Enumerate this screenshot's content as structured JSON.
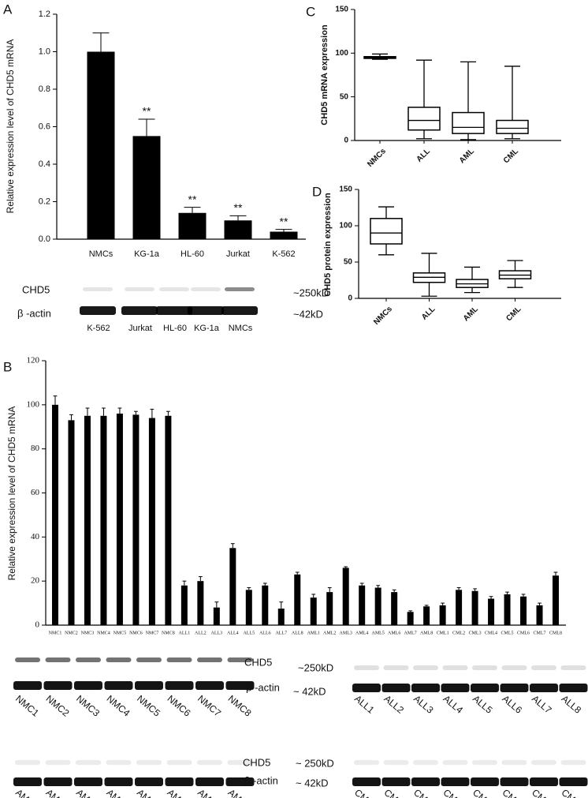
{
  "chart_data": [
    {
      "type": "bar",
      "panel": "A",
      "y_label": "Relative expression level of CHD5 mRNA",
      "categories": [
        "NMCs",
        "KG-1a",
        "HL-60",
        "Jurkat",
        "K-562"
      ],
      "values": [
        1.0,
        0.55,
        0.14,
        0.1,
        0.04
      ],
      "errors": [
        0.1,
        0.09,
        0.03,
        0.025,
        0.012
      ],
      "significance": [
        null,
        "**",
        "**",
        "**",
        "**"
      ],
      "color": "#000000",
      "ylim": [
        0,
        1.2
      ],
      "yticks": [
        {
          "value": 0,
          "label": "0.0"
        },
        {
          "value": 0.2,
          "label": "0.2"
        },
        {
          "value": 0.4,
          "label": "0.4"
        },
        {
          "value": 0.6,
          "label": "0.6"
        },
        {
          "value": 0.8,
          "label": "0.8"
        },
        {
          "value": 1.0,
          "label": "1.0"
        },
        {
          "value": 1.2,
          "label": "1.2"
        }
      ],
      "blot_labels": [
        "CHD5",
        "β -actin",
        "~250kD",
        "~42kD"
      ]
    },
    {
      "type": "bar",
      "panel": "B",
      "y_label": "Relative expression level of CHD5 mRNA",
      "categories": [
        "NMC1",
        "NMC2",
        "NMC3",
        "NMC4",
        "NMC5",
        "NMC6",
        "NMC7",
        "NMC8",
        "ALL1",
        "ALL2",
        "ALL3",
        "ALL4",
        "ALL5",
        "ALL6",
        "ALL7",
        "ALL8",
        "AML1",
        "AML2",
        "AML3",
        "AML4",
        "AML5",
        "AML6",
        "AML7",
        "AML8",
        "CML1",
        "CML2",
        "CML3",
        "CML4",
        "CML5",
        "CML6",
        "CML7",
        "CML8"
      ],
      "values": [
        100,
        93,
        95,
        95,
        96,
        95.5,
        94,
        95,
        18,
        20,
        8,
        35,
        16,
        18,
        7.5,
        23,
        12.5,
        15,
        26,
        18,
        17,
        15,
        6,
        8.5,
        9,
        16,
        15.5,
        12,
        14,
        13,
        9,
        22.5
      ],
      "errors": [
        4,
        2.5,
        3.5,
        3.5,
        2.5,
        1.5,
        4,
        2,
        2,
        2,
        2.5,
        2,
        1,
        1,
        3,
        1,
        1.5,
        2,
        0.5,
        1,
        1,
        1,
        0.5,
        0.5,
        1,
        1,
        1,
        1,
        1,
        1,
        1,
        1.5
      ],
      "color": "#000000",
      "ylim": [
        0,
        120
      ],
      "yticks": [
        0,
        20,
        40,
        60,
        80,
        100,
        120
      ],
      "blot_labels": [
        "CHD5",
        "β -actin",
        "~250kD",
        "~ 42kD",
        "CHD5",
        "β -actin",
        "~ 250kD",
        "~ 42kD"
      ]
    },
    {
      "type": "box",
      "panel": "C",
      "y_label": "CHD5 mRNA expression",
      "categories": [
        "NMCs",
        "ALL",
        "AML",
        "CML"
      ],
      "min": [
        93,
        2,
        1,
        2
      ],
      "q1": [
        94,
        12,
        8,
        8
      ],
      "median": [
        95,
        23,
        15,
        14
      ],
      "q3": [
        96,
        38,
        32,
        23
      ],
      "max": [
        99,
        92,
        90,
        85
      ],
      "ylim": [
        0,
        150
      ],
      "yticks": [
        0,
        50,
        100,
        150
      ]
    },
    {
      "type": "box",
      "panel": "D",
      "y_label": "CHD5 protein expression",
      "categories": [
        "NMCs",
        "ALL",
        "AML",
        "CML"
      ],
      "min": [
        60,
        3,
        8,
        15
      ],
      "q1": [
        75,
        22,
        15,
        27
      ],
      "median": [
        90,
        29,
        20,
        32
      ],
      "q3": [
        110,
        35,
        26,
        38
      ],
      "max": [
        126,
        62,
        43,
        52
      ],
      "ylim": [
        0,
        150
      ],
      "yticks": [
        0,
        50,
        100,
        150
      ]
    }
  ]
}
